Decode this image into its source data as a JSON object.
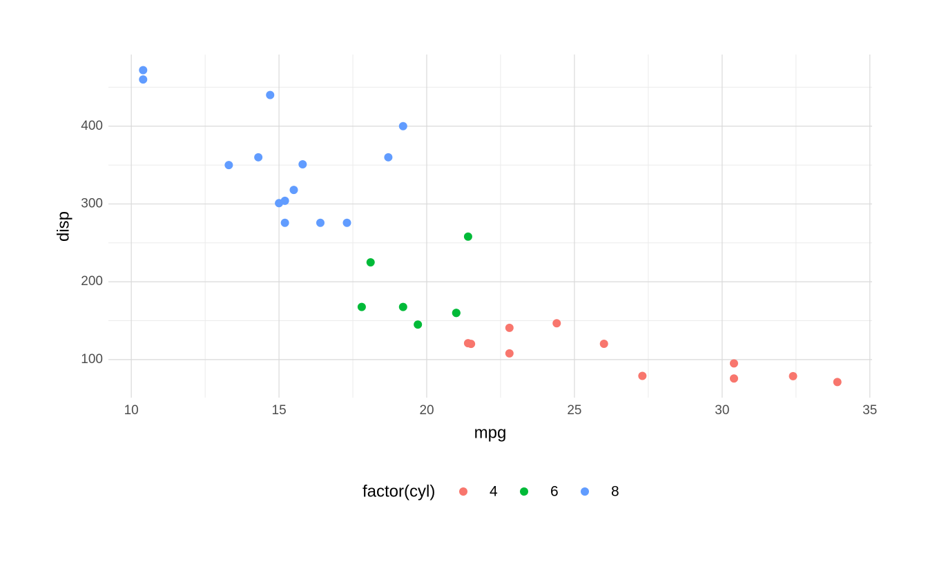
{
  "chart_data": {
    "type": "scatter",
    "x_label": "mpg",
    "y_label": "disp",
    "legend_title": "factor(cyl)",
    "legend_position": "bottom",
    "xlim": [
      9.225,
      35.075
    ],
    "ylim": [
      51.055,
      492.045
    ],
    "xticks": [
      10,
      15,
      20,
      25,
      30,
      35
    ],
    "yticks": [
      100,
      200,
      300,
      400
    ],
    "minor_grid_x": [
      12.5,
      17.5,
      22.5,
      27.5,
      32.5
    ],
    "minor_grid_y": [
      150,
      250,
      350,
      450
    ],
    "grid": true,
    "series": [
      {
        "name": "4",
        "color": "#f8766d",
        "x": [
          22.8,
          24.4,
          22.8,
          32.4,
          30.4,
          33.9,
          21.5,
          27.3,
          26,
          30.4,
          21.4
        ],
        "values": [
          108,
          146.7,
          140.8,
          78.7,
          75.7,
          71.1,
          120.1,
          79,
          120.3,
          95.1,
          121
        ]
      },
      {
        "name": "6",
        "color": "#00ba38",
        "x": [
          21,
          21,
          21.4,
          18.1,
          19.2,
          17.8,
          19.7
        ],
        "values": [
          160,
          160,
          258,
          225,
          167.6,
          167.6,
          145
        ]
      },
      {
        "name": "8",
        "color": "#619cff",
        "x": [
          18.7,
          14.3,
          16.4,
          17.3,
          15.2,
          10.4,
          10.4,
          14.7,
          15.5,
          15.2,
          13.3,
          19.2,
          15.8,
          15
        ],
        "values": [
          360,
          360,
          275.8,
          275.8,
          275.8,
          472,
          460,
          440,
          318,
          304,
          350,
          400,
          351,
          301
        ]
      }
    ]
  }
}
